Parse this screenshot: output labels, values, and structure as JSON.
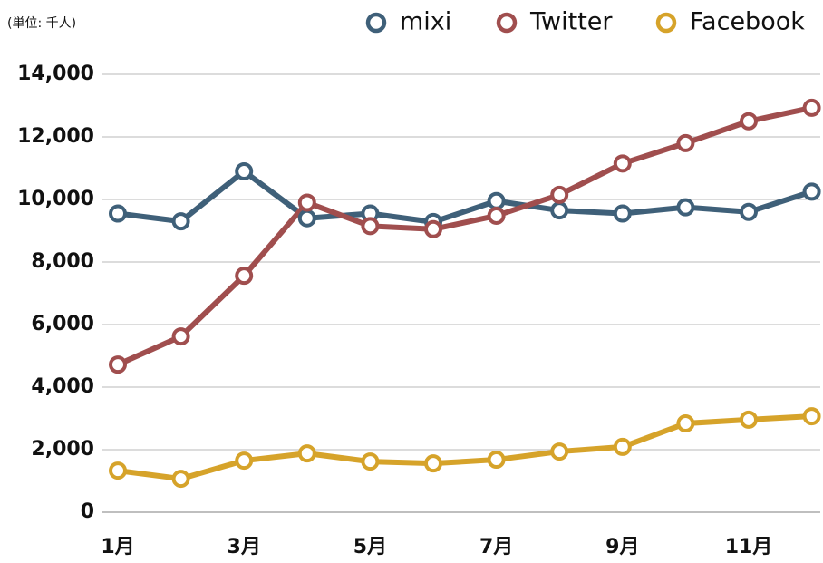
{
  "chart_data": {
    "type": "line",
    "y_label": "(単位: 千人)",
    "categories": [
      "1月",
      null,
      "3月",
      null,
      "5月",
      null,
      "7月",
      null,
      "9月",
      null,
      "11月",
      null
    ],
    "series": [
      {
        "name": "mixi",
        "color": "#3f6079",
        "values": [
          9550,
          9300,
          10900,
          9400,
          9550,
          9280,
          9950,
          9650,
          9550,
          9750,
          9600,
          10250
        ]
      },
      {
        "name": "Twitter",
        "color": "#a04e4e",
        "values": [
          4720,
          5620,
          7560,
          9900,
          9150,
          9050,
          9480,
          10150,
          11150,
          11800,
          12500,
          12930
        ]
      },
      {
        "name": "Facebook",
        "color": "#d6a32a",
        "values": [
          1330,
          1070,
          1650,
          1880,
          1620,
          1560,
          1680,
          1940,
          2090,
          2840,
          2960,
          3070
        ]
      }
    ],
    "ylim": [
      0,
      14000
    ],
    "yticks": [
      0,
      {
        "value": 2000,
        "label": "2,000"
      },
      {
        "value": 4000,
        "label": "4,000"
      },
      {
        "value": 6000,
        "label": "6,000"
      },
      {
        "value": 8000,
        "label": "8,000"
      },
      {
        "value": 10000,
        "label": "10,000"
      },
      {
        "value": 12000,
        "label": "12,000"
      },
      {
        "value": 14000,
        "label": "14,000"
      }
    ],
    "grid": true,
    "legend": "top-right"
  }
}
